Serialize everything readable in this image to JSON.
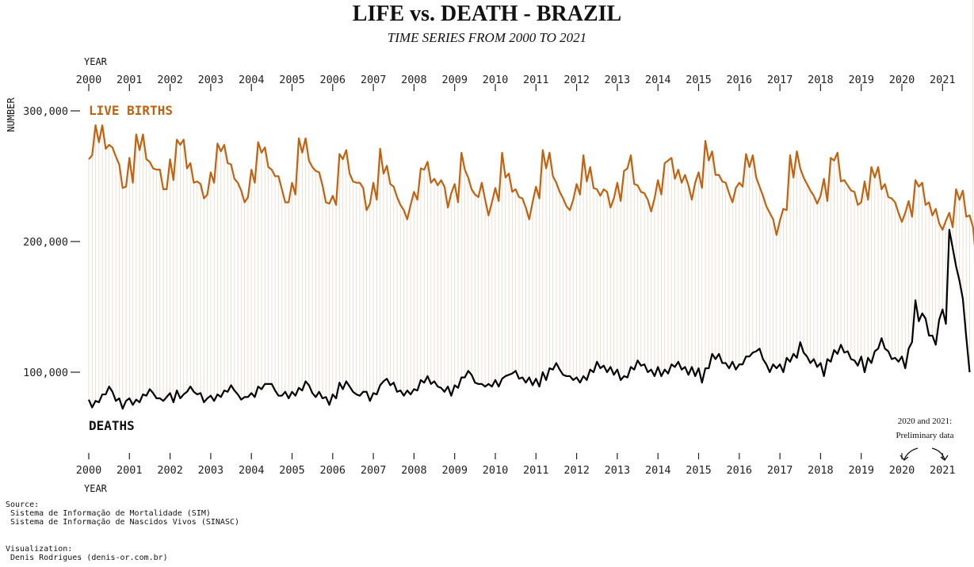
{
  "title": "LIFE vs. DEATH - BRAZIL",
  "subtitle": "TIME SERIES FROM 2000 TO 2021",
  "colors": {
    "births": "#c0620f",
    "deaths": "#000000",
    "connector": "#ead8c6",
    "axis": "#222222"
  },
  "annotation": {
    "line1": "2020 and 2021:",
    "line2": "Preliminary data"
  },
  "source": {
    "heading": "Source:",
    "lines": [
      " Sistema de Informação de Mortalidade (SIM)",
      " Sistema de Informação de Nascidos Vivos (SINASC)"
    ]
  },
  "visualization": {
    "heading": "Visualization:",
    "lines": [
      " Denis Rodrigues (denis-or.com.br)"
    ]
  },
  "chart_data": {
    "type": "line",
    "title": "LIFE vs. DEATH - BRAZIL",
    "subtitle": "TIME SERIES FROM 2000 TO 2021",
    "xlabel_top": "YEAR",
    "xlabel_bottom": "YEAR",
    "ylabel": "NUMBER",
    "x_start": "2000-01",
    "x_end": "2021-09",
    "frequency": "monthly",
    "x_tick_labels": [
      "2000",
      "2001",
      "2002",
      "2003",
      "2004",
      "2005",
      "2006",
      "2007",
      "2008",
      "2009",
      "2010",
      "2011",
      "2012",
      "2013",
      "2014",
      "2015",
      "2016",
      "2017",
      "2018",
      "2019",
      "2020",
      "2021"
    ],
    "y_ticks": [
      100000,
      200000,
      300000
    ],
    "y_tick_labels": [
      "100,000",
      "200,000",
      "300,000"
    ],
    "ylim": [
      28000,
      302000
    ],
    "grid": false,
    "legend": "direct labels",
    "series": [
      {
        "name": "LIVE BIRTHS",
        "values": [
          263000,
          266000,
          289000,
          276000,
          289000,
          271000,
          274000,
          272000,
          265000,
          259000,
          241000,
          242000,
          264000,
          245000,
          282000,
          270000,
          282000,
          263000,
          261000,
          256000,
          255000,
          255000,
          240000,
          240000,
          263000,
          247000,
          278000,
          274000,
          278000,
          256000,
          260000,
          245000,
          246000,
          244000,
          233000,
          236000,
          253000,
          245000,
          275000,
          269000,
          274000,
          260000,
          259000,
          248000,
          245000,
          239000,
          230000,
          234000,
          255000,
          245000,
          276000,
          268000,
          272000,
          257000,
          255000,
          250000,
          250000,
          240000,
          230000,
          230000,
          245000,
          236000,
          279000,
          268000,
          279000,
          262000,
          257000,
          254000,
          253000,
          243000,
          230000,
          229000,
          235000,
          228000,
          267000,
          263000,
          270000,
          252000,
          246000,
          245000,
          245000,
          241000,
          224000,
          229000,
          245000,
          232000,
          271000,
          252000,
          258000,
          244000,
          242000,
          234000,
          228000,
          224000,
          217000,
          228000,
          238000,
          232000,
          256000,
          255000,
          261000,
          245000,
          248000,
          243000,
          247000,
          242000,
          226000,
          237000,
          244000,
          230000,
          268000,
          255000,
          249000,
          240000,
          236000,
          234000,
          245000,
          232000,
          220000,
          230000,
          241000,
          231000,
          268000,
          249000,
          252000,
          238000,
          240000,
          234000,
          233000,
          226000,
          217000,
          230000,
          242000,
          233000,
          270000,
          256000,
          268000,
          250000,
          245000,
          238000,
          233000,
          227000,
          224000,
          232000,
          244000,
          236000,
          266000,
          246000,
          257000,
          241000,
          240000,
          235000,
          240000,
          238000,
          226000,
          233000,
          245000,
          231000,
          254000,
          256000,
          266000,
          244000,
          243000,
          238000,
          237000,
          232000,
          223000,
          233000,
          247000,
          236000,
          260000,
          262000,
          264000,
          248000,
          255000,
          245000,
          251000,
          243000,
          232000,
          245000,
          253000,
          241000,
          277000,
          262000,
          269000,
          251000,
          251000,
          246000,
          245000,
          237000,
          230000,
          241000,
          245000,
          242000,
          267000,
          257000,
          266000,
          249000,
          242000,
          235000,
          227000,
          222000,
          217000,
          205000,
          216000,
          225000,
          224000,
          266000,
          249000,
          269000,
          256000,
          249000,
          244000,
          239000,
          235000,
          229000,
          235000,
          248000,
          231000,
          264000,
          262000,
          268000,
          246000,
          247000,
          243000,
          239000,
          238000,
          228000,
          230000,
          246000,
          232000,
          257000,
          249000,
          257000,
          240000,
          244000,
          234000,
          233000,
          230000,
          222000,
          215000,
          222000,
          231000,
          219000,
          247000,
          242000,
          245000,
          228000,
          230000,
          220000,
          225000,
          214000,
          209000,
          216000,
          222000,
          211000,
          240000,
          232000,
          239000,
          219000,
          220000,
          211000,
          183000
        ]
      },
      {
        "name": "DEATHS",
        "values": [
          79000,
          73000,
          78000,
          77000,
          83000,
          83000,
          89000,
          85000,
          78000,
          80000,
          72000,
          78000,
          80000,
          75000,
          79000,
          77000,
          83000,
          82000,
          87000,
          84000,
          80000,
          80000,
          78000,
          81000,
          84000,
          77000,
          86000,
          80000,
          83000,
          85000,
          89000,
          85000,
          83000,
          84000,
          77000,
          80000,
          82000,
          78000,
          83000,
          81000,
          86000,
          85000,
          90000,
          86000,
          83000,
          79000,
          81000,
          81000,
          84000,
          81000,
          89000,
          87000,
          91000,
          91000,
          91000,
          86000,
          82000,
          82000,
          85000,
          80000,
          85000,
          82000,
          88000,
          86000,
          93000,
          90000,
          84000,
          81000,
          85000,
          80000,
          81000,
          75000,
          83000,
          80000,
          92000,
          87000,
          93000,
          89000,
          85000,
          83000,
          82000,
          85000,
          85000,
          78000,
          84000,
          83000,
          90000,
          93000,
          95000,
          90000,
          92000,
          85000,
          86000,
          82000,
          86000,
          83000,
          87000,
          86000,
          94000,
          92000,
          97000,
          91000,
          93000,
          89000,
          88000,
          85000,
          89000,
          82000,
          90000,
          88000,
          96000,
          96000,
          101000,
          98000,
          92000,
          91000,
          91000,
          89000,
          91000,
          89000,
          94000,
          89000,
          95000,
          97000,
          98000,
          99000,
          101000,
          95000,
          96000,
          92000,
          96000,
          90000,
          95000,
          89000,
          100000,
          94000,
          103000,
          102000,
          107000,
          102000,
          98000,
          97000,
          97000,
          94000,
          96000,
          92000,
          97000,
          94000,
          102000,
          100000,
          108000,
          103000,
          105000,
          100000,
          104000,
          98000,
          102000,
          94000,
          97000,
          96000,
          104000,
          102000,
          109000,
          105000,
          106000,
          100000,
          102000,
          97000,
          104000,
          97000,
          102000,
          99000,
          106000,
          104000,
          108000,
          102000,
          104000,
          98000,
          104000,
          97000,
          103000,
          92000,
          103000,
          103000,
          114000,
          110000,
          114000,
          107000,
          107000,
          103000,
          108000,
          102000,
          106000,
          106000,
          112000,
          112000,
          115000,
          116000,
          118000,
          110000,
          106000,
          100000,
          106000,
          103000,
          106000,
          100000,
          111000,
          108000,
          114000,
          111000,
          123000,
          115000,
          112000,
          107000,
          110000,
          104000,
          107000,
          97000,
          110000,
          108000,
          117000,
          114000,
          121000,
          115000,
          116000,
          110000,
          109000,
          105000,
          112000,
          100000,
          111000,
          107000,
          116000,
          118000,
          126000,
          118000,
          116000,
          110000,
          111000,
          108000,
          112000,
          103000,
          118000,
          123000,
          155000,
          139000,
          145000,
          141000,
          128000,
          128000,
          121000,
          140000,
          148000,
          137000,
          209000,
          195000,
          181000,
          170000,
          156000,
          127000,
          100000
        ]
      }
    ]
  }
}
